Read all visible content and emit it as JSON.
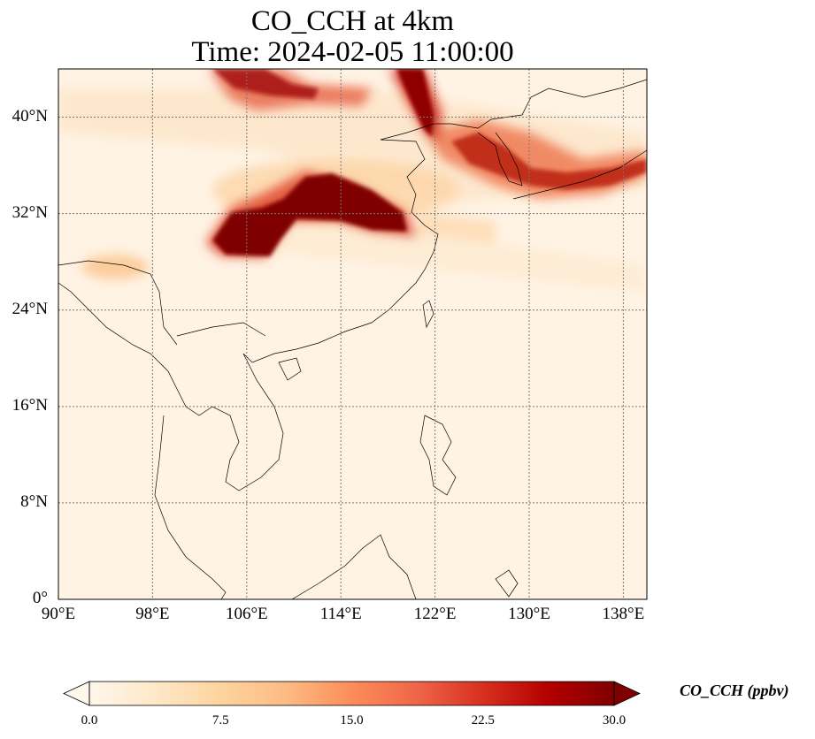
{
  "title": {
    "line1": "CO_CCH at 4km",
    "line2": "Time: 2024-02-05 11:00:00"
  },
  "map": {
    "projection": "PlateCarree",
    "lon_range": [
      90,
      140
    ],
    "lat_range": [
      0,
      44
    ],
    "gridlines": "dotted grey",
    "x_ticks": [
      {
        "value": 90,
        "label": "90°E"
      },
      {
        "value": 98,
        "label": "98°E"
      },
      {
        "value": 106,
        "label": "106°E"
      },
      {
        "value": 114,
        "label": "114°E"
      },
      {
        "value": 122,
        "label": "122°E"
      },
      {
        "value": 130,
        "label": "130°E"
      },
      {
        "value": 138,
        "label": "138°E"
      }
    ],
    "y_ticks": [
      {
        "value": 0,
        "label": "0°"
      },
      {
        "value": 8,
        "label": "8°N"
      },
      {
        "value": 16,
        "label": "16°N"
      },
      {
        "value": 24,
        "label": "24°N"
      },
      {
        "value": 32,
        "label": "32°N"
      },
      {
        "value": 40,
        "label": "40°N"
      }
    ],
    "plumes": [
      {
        "name": "central-china-plume",
        "lon": 107.2,
        "lat": 30.5,
        "level": "max"
      },
      {
        "name": "east-extension-plume",
        "lon": 112.5,
        "lat": 34.0,
        "level": "max"
      },
      {
        "name": "korea-japan-band",
        "lon": 128.0,
        "lat": 37.0,
        "level": "high"
      },
      {
        "name": "north-plume",
        "lon": 120.5,
        "lat": 42.5,
        "level": "high"
      },
      {
        "name": "north-west-plume",
        "lon": 107.0,
        "lat": 43.0,
        "level": "high"
      }
    ]
  },
  "colorbar": {
    "label": "CO_CCH (ppbv)",
    "colormap": "OrRd",
    "min": 0.0,
    "max": 30.0,
    "extend": "both",
    "ticks": [
      "0.0",
      "7.5",
      "15.0",
      "22.5",
      "30.0"
    ],
    "colors": [
      "#fff7ec",
      "#fee8c8",
      "#fdd49e",
      "#fdbb84",
      "#fc8d59",
      "#ef6548",
      "#d7301f",
      "#b30000",
      "#7f0000"
    ]
  }
}
